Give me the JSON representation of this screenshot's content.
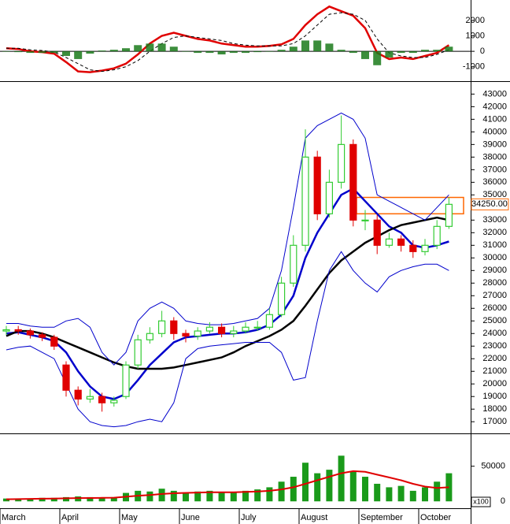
{
  "chart_data": [
    {
      "type": "macd",
      "ylim": [
        -1830,
        3220
      ],
      "yticks": [
        -1000,
        0,
        1000,
        2000
      ],
      "series": [
        {
          "name": "MACD",
          "color": "#e00000",
          "values": [
            200,
            150,
            0,
            -50,
            -150,
            -700,
            -1300,
            -1350,
            -1250,
            -1100,
            -800,
            -200,
            500,
            1000,
            1200,
            1000,
            800,
            700,
            500,
            400,
            300,
            300,
            350,
            450,
            800,
            1700,
            2400,
            2900,
            2600,
            2300,
            1500,
            -100,
            -500,
            -400,
            -500,
            -300,
            -100,
            400
          ]
        },
        {
          "name": "Signal",
          "color": "#000000",
          "values": [
            200,
            200,
            100,
            50,
            -50,
            -400,
            -800,
            -1200,
            -1300,
            -1200,
            -1000,
            -600,
            0,
            500,
            900,
            1000,
            900,
            800,
            700,
            500,
            400,
            350,
            350,
            350,
            500,
            1000,
            1700,
            2400,
            2500,
            2400,
            2000,
            800,
            -100,
            -300,
            -400,
            -400,
            -200,
            100
          ]
        },
        {
          "name": "Histogram",
          "color": "#1a7a1a",
          "values": [
            0,
            -50,
            -100,
            -100,
            -100,
            -300,
            -500,
            -150,
            50,
            100,
            200,
            400,
            500,
            500,
            300,
            0,
            -100,
            -100,
            -200,
            -100,
            -100,
            -50,
            0,
            100,
            300,
            700,
            700,
            500,
            100,
            -100,
            -500,
            -900,
            -400,
            -100,
            -100,
            100,
            100,
            300
          ]
        }
      ]
    },
    {
      "type": "candlestick",
      "categories": [
        "March",
        null,
        null,
        null,
        null,
        "April",
        null,
        null,
        null,
        null,
        "May",
        null,
        null,
        null,
        null,
        "June",
        null,
        null,
        null,
        null,
        "July",
        null,
        null,
        null,
        null,
        "August",
        null,
        null,
        null,
        null,
        "September",
        null,
        null,
        null,
        null,
        "October",
        null,
        null
      ],
      "open": [
        24200,
        24300,
        24200,
        23900,
        23700,
        21500,
        19500,
        18800,
        19000,
        18500,
        19000,
        21500,
        23500,
        24000,
        25000,
        24000,
        23800,
        24200,
        24500,
        24000,
        24200,
        24500,
        24500,
        25500,
        28000,
        31000,
        38000,
        33500,
        36000,
        39000,
        33000,
        33000,
        31000,
        31500,
        31000,
        30500,
        31000,
        32500
      ],
      "high": [
        24600,
        24600,
        24400,
        24100,
        23900,
        21800,
        19800,
        19600,
        19300,
        19000,
        21800,
        23900,
        24500,
        25800,
        25300,
        24300,
        24500,
        24900,
        24800,
        24600,
        24900,
        25000,
        26000,
        28500,
        31800,
        40200,
        38500,
        37000,
        41300,
        39400,
        33800,
        33400,
        32000,
        31800,
        31400,
        31500,
        33000,
        34800
      ],
      "low": [
        23900,
        23900,
        23600,
        23400,
        22700,
        19000,
        18300,
        18500,
        17800,
        18200,
        18800,
        21200,
        23200,
        23700,
        23500,
        23300,
        23500,
        24000,
        23700,
        23700,
        24000,
        24200,
        24300,
        25300,
        27700,
        30500,
        33000,
        33200,
        35500,
        32500,
        32200,
        30300,
        30800,
        30500,
        30000,
        30200,
        30700,
        32300
      ],
      "close": [
        24300,
        24200,
        23900,
        23700,
        23000,
        19500,
        18800,
        19000,
        18500,
        18700,
        21500,
        23500,
        24000,
        25000,
        24000,
        23800,
        24200,
        24500,
        24000,
        24200,
        24500,
        24500,
        25500,
        28000,
        31000,
        38000,
        33500,
        36000,
        39000,
        33000,
        33000,
        31000,
        31500,
        31000,
        30500,
        31000,
        32500,
        34250
      ],
      "up_color": "#33cc33",
      "down_color": "#e00000",
      "lines": [
        {
          "name": "MA20",
          "color": "#0000cc",
          "width": 2.5,
          "values": [
            24000,
            24100,
            23900,
            23700,
            23400,
            22500,
            21000,
            19800,
            19000,
            18800,
            19200,
            20300,
            21500,
            22400,
            23300,
            23700,
            23800,
            23900,
            24000,
            24000,
            24100,
            24300,
            24700,
            25500,
            27000,
            30000,
            32000,
            33500,
            35000,
            35500,
            34500,
            33500,
            32500,
            32000,
            31000,
            30800,
            31000,
            31300
          ]
        },
        {
          "name": "MA50",
          "color": "#000000",
          "width": 2.5,
          "values": [
            23800,
            24200,
            24200,
            24000,
            23700,
            23300,
            22900,
            22500,
            22100,
            21700,
            21400,
            21200,
            21200,
            21200,
            21300,
            21500,
            21700,
            21900,
            22100,
            22500,
            23000,
            23400,
            23800,
            24300,
            25000,
            26200,
            27500,
            28800,
            29800,
            30500,
            31200,
            31700,
            32200,
            32600,
            32800,
            33000,
            33200,
            33000
          ]
        },
        {
          "name": "Upper band",
          "color": "#0000cc",
          "width": 1,
          "values": [
            24800,
            24800,
            24600,
            24500,
            24500,
            25000,
            25200,
            24500,
            22500,
            21500,
            22500,
            25000,
            26000,
            26500,
            26000,
            25000,
            24800,
            24700,
            24700,
            24800,
            25000,
            25200,
            26000,
            29000,
            34000,
            39500,
            40500,
            41000,
            41500,
            41000,
            39500,
            35000,
            34500,
            34000,
            33500,
            33000,
            34000,
            35000
          ]
        },
        {
          "name": "Lower band",
          "color": "#0000cc",
          "width": 1,
          "values": [
            22700,
            22900,
            23000,
            22500,
            22000,
            20000,
            18000,
            17000,
            16700,
            16600,
            16700,
            17000,
            17200,
            17000,
            18500,
            22000,
            22800,
            23000,
            23100,
            23200,
            23300,
            23300,
            23300,
            22500,
            20300,
            20500,
            25000,
            29000,
            30500,
            29000,
            28000,
            27300,
            28500,
            29000,
            29300,
            29500,
            29500,
            29000
          ]
        }
      ],
      "zone": {
        "low": 33500,
        "high": 34800,
        "color": "#ff6600"
      },
      "last_price": {
        "value": 34250,
        "label": "34250.00"
      },
      "ylim": [
        16200,
        43900
      ],
      "yticks": [
        17000,
        18000,
        19000,
        20000,
        21000,
        22000,
        23000,
        24000,
        25000,
        26000,
        27000,
        28000,
        29000,
        30000,
        31000,
        32000,
        33000,
        34000,
        35000,
        36000,
        37000,
        38000,
        39000,
        40000,
        41000,
        42000,
        43000
      ]
    },
    {
      "type": "volume",
      "values": [
        4000,
        3500,
        4000,
        5000,
        5000,
        6000,
        7000,
        6000,
        5000,
        6000,
        12000,
        15000,
        14000,
        18000,
        15000,
        12000,
        14000,
        15000,
        12000,
        13000,
        15000,
        17000,
        20000,
        28000,
        35000,
        55000,
        40000,
        45000,
        65000,
        42000,
        35000,
        25000,
        20000,
        22000,
        15000,
        20000,
        28000,
        40000
      ],
      "color": "#1a9a1a",
      "ma": {
        "color": "#e00000",
        "values": [
          3000,
          3200,
          3500,
          3800,
          4000,
          4300,
          4600,
          4800,
          5000,
          5200,
          6500,
          8000,
          9000,
          10500,
          11500,
          12000,
          12500,
          13000,
          13000,
          13000,
          13500,
          14000,
          15000,
          17000,
          20000,
          25000,
          30000,
          35000,
          40000,
          43000,
          42000,
          38000,
          34000,
          30000,
          25000,
          21000,
          19000,
          20000
        ]
      },
      "unit": "x100",
      "ylim": [
        -8700,
        94500
      ],
      "yticks": [
        0,
        50000
      ]
    }
  ]
}
